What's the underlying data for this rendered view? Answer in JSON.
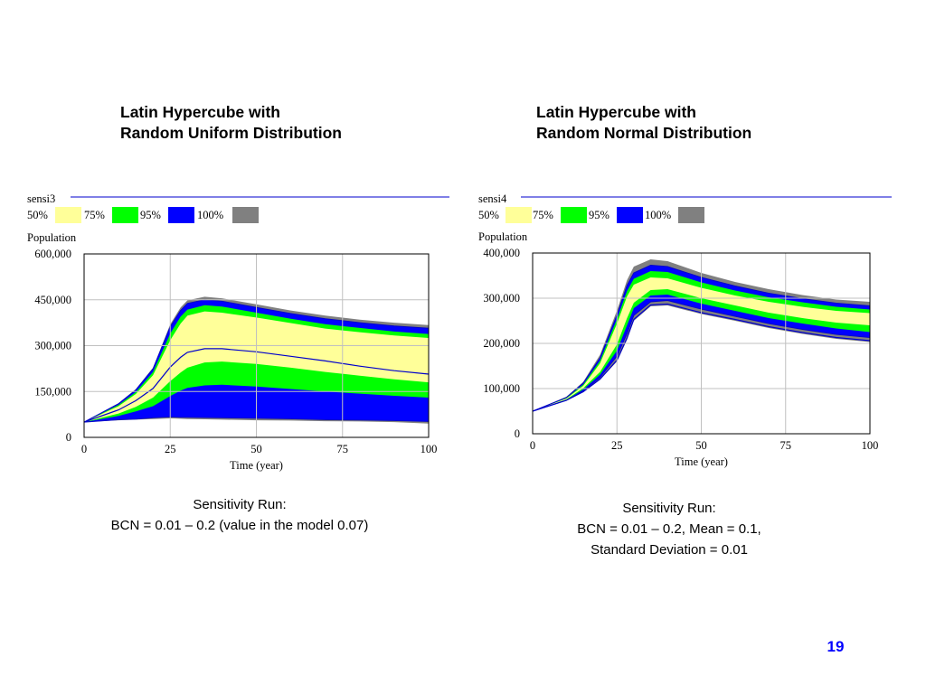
{
  "slide": {
    "page_number": "19",
    "colors": {
      "band_50": "#ffff99",
      "band_75": "#00ff00",
      "band_95": "#0000ff",
      "band_100": "#808080",
      "reference_line": "#0000cc",
      "page_number": "#0000ff"
    }
  },
  "left_panel": {
    "title_lines": [
      "Latin Hypercube with",
      "Random Uniform Distribution"
    ],
    "caption_lines": [
      "Sensitivity Run:",
      "BCN = 0.01 – 0.2 (value in the model 0.07)"
    ]
  },
  "right_panel": {
    "title_lines": [
      "Latin Hypercube with",
      "Random Normal Distribution"
    ],
    "caption_lines": [
      "Sensitivity Run:",
      "BCN = 0.01 – 0.2, Mean = 0.1,",
      "Standard Deviation = 0.01"
    ]
  },
  "chart_data": [
    {
      "type": "area",
      "sensitivity_name": "sensi3",
      "legend": [
        "50%",
        "75%",
        "95%",
        "100%"
      ],
      "variable_label": "Population",
      "xlabel": "Time (year)",
      "x_ticks": [
        "0",
        "25",
        "50",
        "75",
        "100"
      ],
      "y_ticks": [
        "0",
        "150,000",
        "300,000",
        "450,000",
        "600,000"
      ],
      "xlim": [
        0,
        100
      ],
      "ylim": [
        0,
        600000
      ],
      "grid": true,
      "x": [
        0,
        10,
        15,
        20,
        25,
        28,
        30,
        35,
        40,
        50,
        60,
        70,
        80,
        90,
        100
      ],
      "band_100": {
        "upper": [
          50000,
          112000,
          158000,
          228000,
          370000,
          425000,
          448000,
          460000,
          455000,
          435000,
          415000,
          398000,
          385000,
          375000,
          367000
        ],
        "lower": [
          50000,
          56000,
          58000,
          60000,
          62000,
          61000,
          60000,
          59000,
          58000,
          56000,
          55000,
          53000,
          52000,
          50000,
          45000
        ]
      },
      "band_95": {
        "upper": [
          50000,
          110000,
          155000,
          224000,
          362000,
          415000,
          438000,
          450000,
          445000,
          425000,
          405000,
          388000,
          375000,
          364000,
          357000
        ],
        "lower": [
          50000,
          58000,
          60000,
          64000,
          67000,
          66000,
          66000,
          65000,
          64000,
          63000,
          61000,
          58000,
          57000,
          55000,
          52000
        ]
      },
      "band_75": {
        "upper": [
          50000,
          106000,
          148000,
          214000,
          340000,
          395000,
          418000,
          432000,
          428000,
          408000,
          388000,
          370000,
          358000,
          346000,
          338000
        ],
        "lower": [
          50000,
          70000,
          85000,
          102000,
          135000,
          153000,
          162000,
          170000,
          172000,
          166000,
          158000,
          150000,
          143000,
          136000,
          130000
        ]
      },
      "band_50": {
        "upper": [
          50000,
          102000,
          142000,
          203000,
          318000,
          372000,
          398000,
          412000,
          408000,
          392000,
          374000,
          356000,
          344000,
          333000,
          325000
        ],
        "lower": [
          50000,
          78000,
          100000,
          130000,
          184000,
          212000,
          228000,
          245000,
          248000,
          240000,
          228000,
          214000,
          202000,
          190000,
          180000
        ]
      },
      "reference_line": [
        50000,
        90000,
        120000,
        160000,
        230000,
        262000,
        278000,
        290000,
        290000,
        280000,
        265000,
        250000,
        233000,
        218000,
        207000
      ]
    },
    {
      "type": "area",
      "sensitivity_name": "sensi4",
      "legend": [
        "50%",
        "75%",
        "95%",
        "100%"
      ],
      "variable_label": "Population",
      "xlabel": "Time (year)",
      "x_ticks": [
        "0",
        "25",
        "50",
        "75",
        "100"
      ],
      "y_ticks": [
        "0",
        "100,000",
        "200,000",
        "300,000",
        "400,000"
      ],
      "xlim": [
        0,
        100
      ],
      "ylim": [
        0,
        400000
      ],
      "grid": true,
      "x": [
        0,
        10,
        15,
        20,
        25,
        28,
        30,
        35,
        40,
        50,
        60,
        70,
        80,
        90,
        100
      ],
      "band_100": {
        "upper": [
          50000,
          82000,
          115000,
          175000,
          273000,
          340000,
          370000,
          386000,
          382000,
          356000,
          336000,
          320000,
          307000,
          297000,
          292000
        ],
        "lower": [
          50000,
          73000,
          92000,
          120000,
          160000,
          208000,
          250000,
          282000,
          284000,
          265000,
          250000,
          234000,
          221000,
          210000,
          203000
        ]
      },
      "band_95": {
        "upper": [
          50000,
          80000,
          112000,
          168000,
          263000,
          328000,
          356000,
          373000,
          370000,
          346000,
          327000,
          311000,
          299000,
          289000,
          283000
        ],
        "lower": [
          50000,
          74000,
          95000,
          125000,
          172000,
          222000,
          262000,
          292000,
          295000,
          276000,
          260000,
          244000,
          231000,
          220000,
          213000
        ]
      },
      "band_75": {
        "upper": [
          50000,
          79000,
          109000,
          162000,
          254000,
          316000,
          343000,
          360000,
          358000,
          335000,
          317000,
          302000,
          291000,
          281000,
          275000
        ],
        "lower": [
          50000,
          75000,
          98000,
          131000,
          184000,
          240000,
          278000,
          306000,
          308000,
          288000,
          272000,
          256000,
          244000,
          233000,
          225000
        ]
      },
      "band_50": {
        "upper": [
          50000,
          78000,
          106000,
          156000,
          244000,
          304000,
          330000,
          346000,
          344000,
          323000,
          306000,
          292000,
          281000,
          272000,
          267000
        ],
        "lower": [
          50000,
          76000,
          101000,
          137000,
          198000,
          256000,
          290000,
          318000,
          320000,
          300000,
          284000,
          268000,
          256000,
          246000,
          240000
        ]
      },
      "reference_line": [
        50000,
        74000,
        93000,
        121000,
        163000,
        212000,
        253000,
        285000,
        287000,
        268000,
        253000,
        237000,
        224000,
        213000,
        206000
      ]
    }
  ]
}
